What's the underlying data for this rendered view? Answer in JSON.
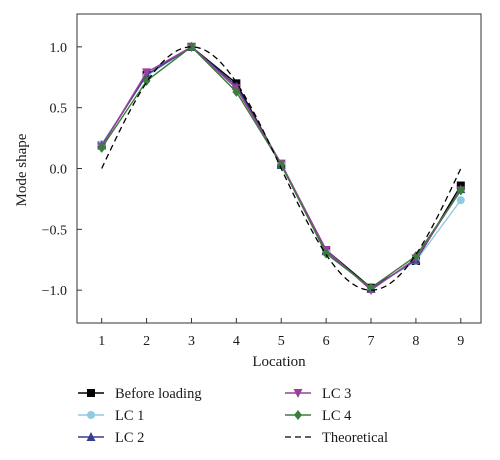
{
  "chart_data": {
    "type": "line",
    "xlabel": "Location",
    "ylabel": "Mode shape",
    "x": [
      1,
      2,
      3,
      4,
      5,
      6,
      7,
      8,
      9
    ],
    "xlim": [
      0.45,
      9.45
    ],
    "ylim": [
      -1.27,
      1.27
    ],
    "xticks": [
      "1",
      "2",
      "3",
      "4",
      "5",
      "6",
      "7",
      "8",
      "9"
    ],
    "yticks": [
      1.0,
      0.5,
      0.0,
      -0.5,
      -1.0
    ],
    "ytick_labels": [
      "1.0",
      "0.5",
      "0.0",
      "−0.5",
      "−1.0"
    ],
    "grid": false,
    "legend_position": "bottom",
    "series": [
      {
        "name": "Before loading",
        "color": "#000000",
        "marker": "square",
        "values": [
          0.19,
          0.77,
          1.0,
          0.7,
          0.03,
          -0.67,
          -0.98,
          -0.76,
          -0.14
        ]
      },
      {
        "name": "LC 1",
        "color": "#8ecbe0",
        "marker": "circle",
        "values": [
          0.2,
          0.76,
          1.0,
          0.66,
          0.04,
          -0.68,
          -0.99,
          -0.76,
          -0.26
        ]
      },
      {
        "name": "LC 2",
        "color": "#3a3d8f",
        "marker": "triangle-up",
        "values": [
          0.19,
          0.77,
          1.0,
          0.68,
          0.03,
          -0.68,
          -0.99,
          -0.75,
          -0.17
        ]
      },
      {
        "name": "LC 3",
        "color": "#9b3f9b",
        "marker": "triangle-down",
        "values": [
          0.18,
          0.79,
          1.0,
          0.66,
          0.04,
          -0.67,
          -1.0,
          -0.74,
          -0.18
        ]
      },
      {
        "name": "LC 4",
        "color": "#3b7d3b",
        "marker": "diamond",
        "values": [
          0.17,
          0.72,
          1.0,
          0.63,
          0.03,
          -0.7,
          -0.98,
          -0.72,
          -0.18
        ]
      },
      {
        "name": "Theoretical",
        "color": "#000000",
        "marker": "none",
        "dashed": true,
        "function": "sin(pi*(x-1)/4)"
      }
    ]
  }
}
